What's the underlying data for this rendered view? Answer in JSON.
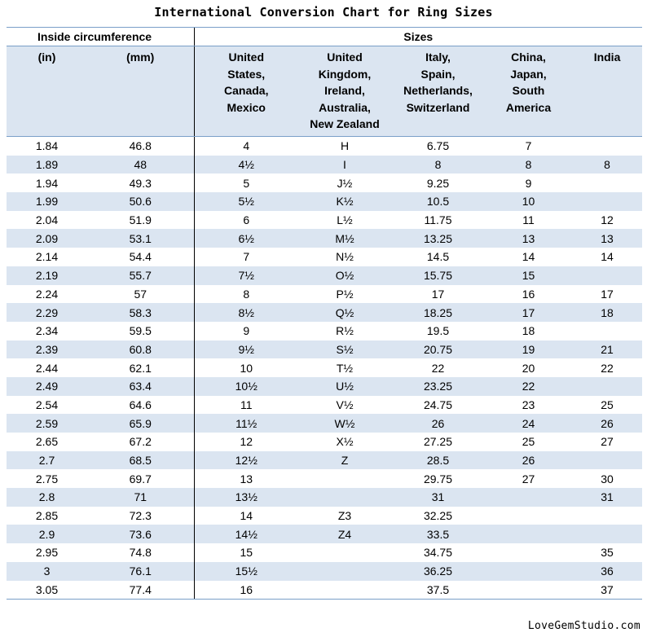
{
  "title": "International Conversion Chart for Ring Sizes",
  "group_headers": {
    "inside": "Inside circumference",
    "sizes": "Sizes"
  },
  "columns": [
    "(in)",
    "(mm)",
    "United\nStates,\nCanada,\nMexico",
    "United\nKingdom,\nIreland,\nAustralia,\nNew Zealand",
    "Italy,\nSpain,\nNetherlands,\nSwitzerland",
    "China,\nJapan,\nSouth\nAmerica",
    "India"
  ],
  "rows": [
    [
      "1.84",
      "46.8",
      "4",
      "H",
      "6.75",
      "7",
      ""
    ],
    [
      "1.89",
      "48",
      "4½",
      "I",
      "8",
      "8",
      "8"
    ],
    [
      "1.94",
      "49.3",
      "5",
      "J½",
      "9.25",
      "9",
      ""
    ],
    [
      "1.99",
      "50.6",
      "5½",
      "K½",
      "10.5",
      "10",
      ""
    ],
    [
      "2.04",
      "51.9",
      "6",
      "L½",
      "11.75",
      "11",
      "12"
    ],
    [
      "2.09",
      "53.1",
      "6½",
      "M½",
      "13.25",
      "13",
      "13"
    ],
    [
      "2.14",
      "54.4",
      "7",
      "N½",
      "14.5",
      "14",
      "14"
    ],
    [
      "2.19",
      "55.7",
      "7½",
      "O½",
      "15.75",
      "15",
      ""
    ],
    [
      "2.24",
      "57",
      "8",
      "P½",
      "17",
      "16",
      "17"
    ],
    [
      "2.29",
      "58.3",
      "8½",
      "Q½",
      "18.25",
      "17",
      "18"
    ],
    [
      "2.34",
      "59.5",
      "9",
      "R½",
      "19.5",
      "18",
      ""
    ],
    [
      "2.39",
      "60.8",
      "9½",
      "S½",
      "20.75",
      "19",
      "21"
    ],
    [
      "2.44",
      "62.1",
      "10",
      "T½",
      "22",
      "20",
      "22"
    ],
    [
      "2.49",
      "63.4",
      "10½",
      "U½",
      "23.25",
      "22",
      ""
    ],
    [
      "2.54",
      "64.6",
      "11",
      "V½",
      "24.75",
      "23",
      "25"
    ],
    [
      "2.59",
      "65.9",
      "11½",
      "W½",
      "26",
      "24",
      "26"
    ],
    [
      "2.65",
      "67.2",
      "12",
      "X½",
      "27.25",
      "25",
      "27"
    ],
    [
      "2.7",
      "68.5",
      "12½",
      "Z",
      "28.5",
      "26",
      ""
    ],
    [
      "2.75",
      "69.7",
      "13",
      "",
      "29.75",
      "27",
      "30"
    ],
    [
      "2.8",
      "71",
      "13½",
      "",
      "31",
      "",
      "31"
    ],
    [
      "2.85",
      "72.3",
      "14",
      "Z3",
      "32.25",
      "",
      ""
    ],
    [
      "2.9",
      "73.6",
      "14½",
      "Z4",
      "33.5",
      "",
      ""
    ],
    [
      "2.95",
      "74.8",
      "15",
      "",
      "34.75",
      "",
      "35"
    ],
    [
      "3",
      "76.1",
      "15½",
      "",
      "36.25",
      "",
      "36"
    ],
    [
      "3.05",
      "77.4",
      "16",
      "",
      "37.5",
      "",
      "37"
    ]
  ],
  "footer": "LoveGemStudio.com",
  "colors": {
    "band": "#dbe5f1",
    "rule": "#7a9fc8"
  }
}
